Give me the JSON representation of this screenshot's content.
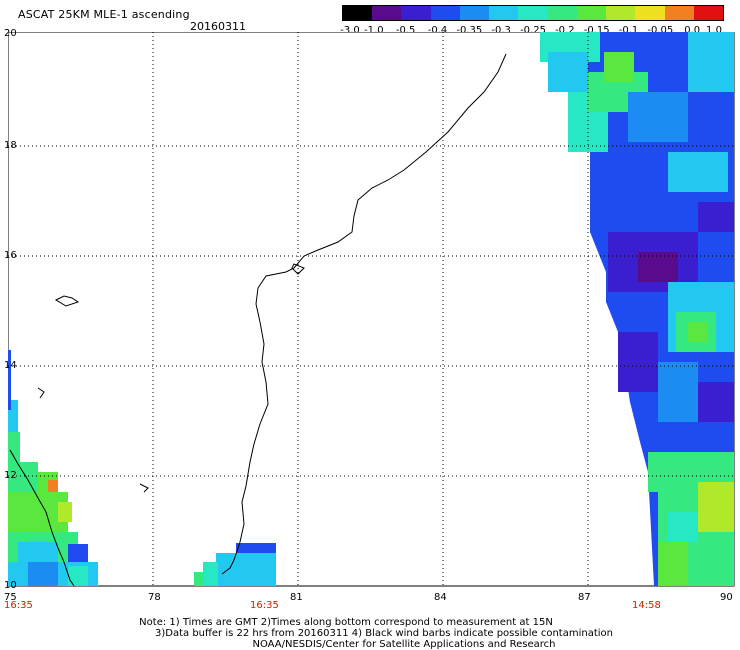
{
  "header": {
    "title": "ASCAT 25KM MLE-1 ascending",
    "date": "20160311"
  },
  "colorbar": {
    "labels": [
      "-3.0",
      "-1.0",
      "-0.5",
      "-0.4",
      "-0.35",
      "-0.3",
      "-0.25",
      "-0.2",
      "-0.15",
      "-0.1",
      "-0.05",
      "0.0",
      "1.0"
    ],
    "colors": [
      "#000000",
      "#5a0a8c",
      "#3a1fd0",
      "#1e4cf0",
      "#1c8cf2",
      "#22c8f0",
      "#26e8c4",
      "#36e880",
      "#5ae83e",
      "#b0e82a",
      "#f0e020",
      "#f08020",
      "#e01010"
    ]
  },
  "map": {
    "lon_ticks": [
      "75",
      "78",
      "81",
      "84",
      "87",
      "90"
    ],
    "lat_ticks": [
      "20",
      "18",
      "16",
      "14",
      "12",
      "10"
    ],
    "times": [
      "16:35",
      "16:35",
      "14:58"
    ],
    "grid": "on"
  },
  "notes": {
    "line1": "Note: 1) Times are GMT 2)Times along bottom correspond to measurement at 15N",
    "line2": "3)Data buffer is 22 hrs from 20160311 4) Black wind barbs indicate possible contamination",
    "line3": "NOAA/NESDIS/Center for Satellite Applications and Research"
  }
}
